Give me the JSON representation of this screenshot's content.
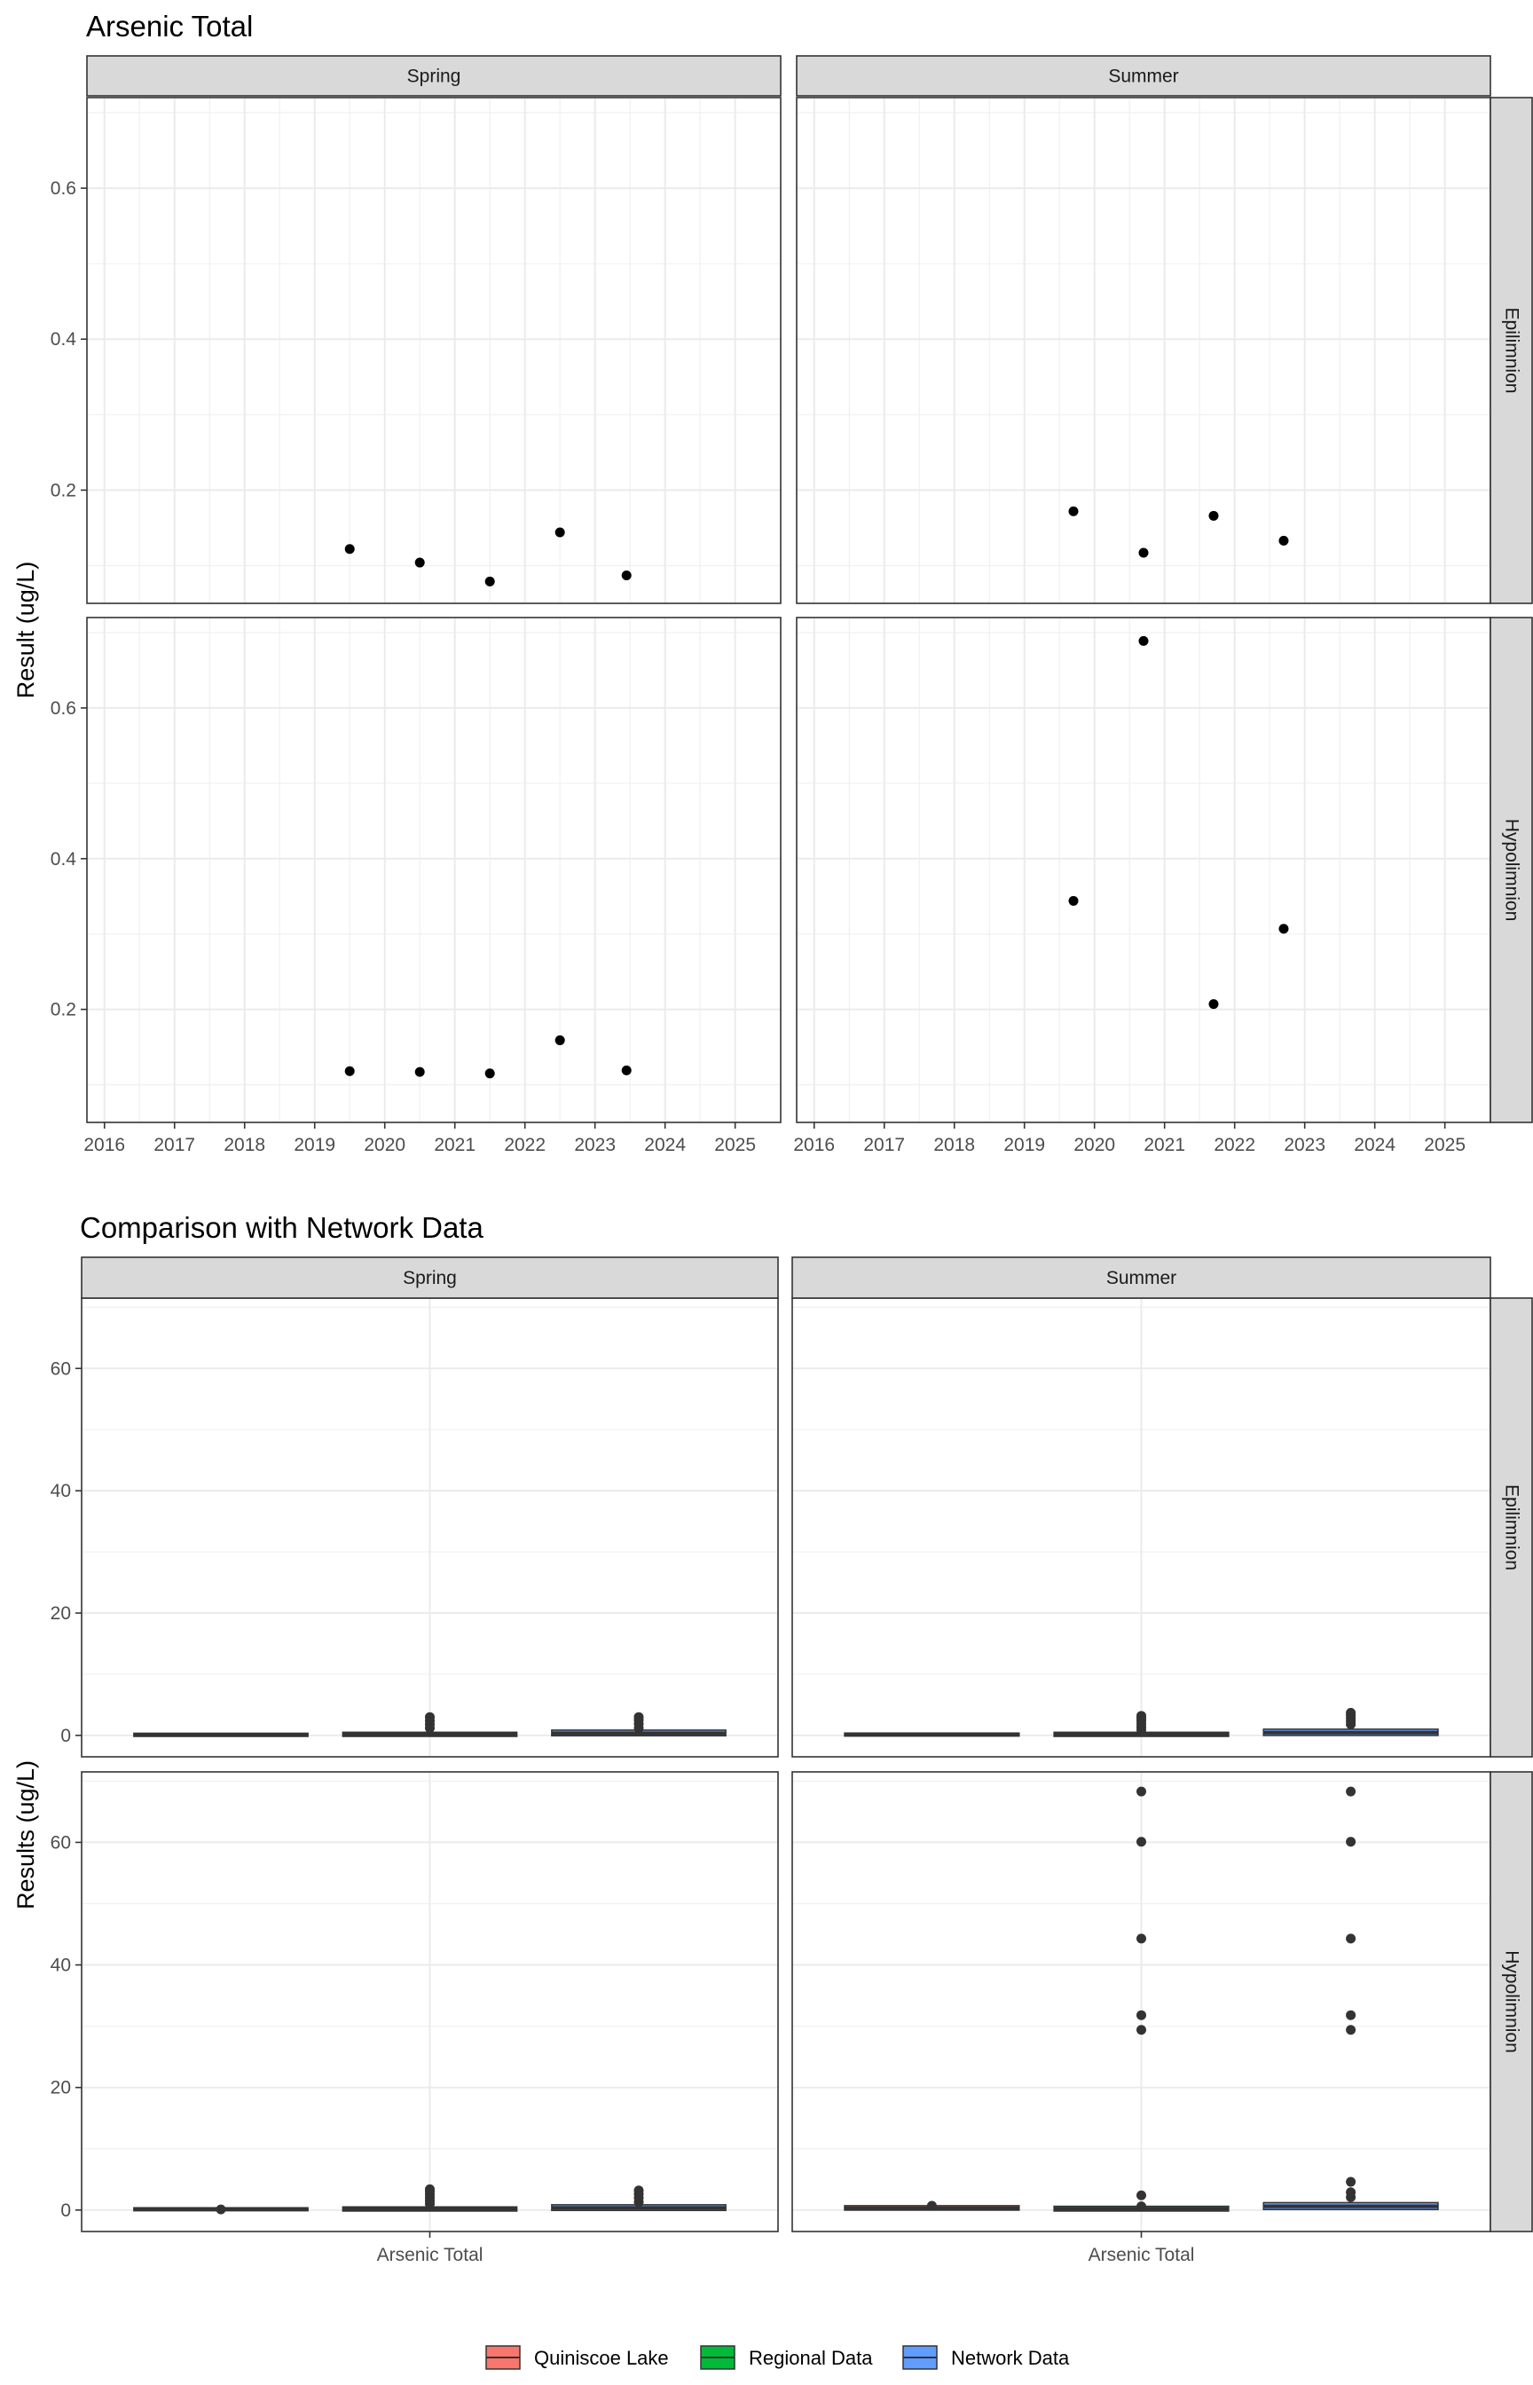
{
  "chart_data": [
    {
      "type": "scatter",
      "title": "Arsenic Total",
      "ylabel": "Result (ug/L)",
      "xlabel": "",
      "x_ticks": [
        "2016",
        "2017",
        "2018",
        "2019",
        "2020",
        "2021",
        "2022",
        "2023",
        "2024",
        "2025"
      ],
      "y_ticks": [
        "0.2",
        "0.4",
        "0.6"
      ],
      "xlim": [
        2015.75,
        2025.65
      ],
      "ylim": [
        0.05,
        0.72
      ],
      "grid": true,
      "col_facets": [
        "Spring",
        "Summer"
      ],
      "row_facets": [
        "Epilimnion",
        "Hypolimnion"
      ],
      "panels": [
        {
          "col": 0,
          "row": 0,
          "x": [
            2019.5,
            2020.5,
            2021.5,
            2022.5,
            2023.45
          ],
          "y": [
            0.122,
            0.104,
            0.079,
            0.144,
            0.087
          ]
        },
        {
          "col": 1,
          "row": 0,
          "x": [
            2019.7,
            2020.7,
            2021.7,
            2022.7
          ],
          "y": [
            0.172,
            0.117,
            0.166,
            0.133
          ]
        },
        {
          "col": 0,
          "row": 1,
          "x": [
            2019.5,
            2020.5,
            2021.5,
            2022.5,
            2023.45
          ],
          "y": [
            0.118,
            0.117,
            0.115,
            0.159,
            0.119
          ]
        },
        {
          "col": 1,
          "row": 1,
          "x": [
            2019.7,
            2020.7,
            2021.7,
            2022.7
          ],
          "y": [
            0.344,
            0.689,
            0.207,
            0.307
          ]
        }
      ]
    },
    {
      "type": "box",
      "title": "Comparison with Network Data",
      "ylabel": "Results (ug/L)",
      "xlabel": "",
      "x_tick": "Arsenic Total",
      "y_ticks": [
        "0",
        "20",
        "40",
        "60"
      ],
      "ylim": [
        -3.5,
        71.5
      ],
      "grid": true,
      "col_facets": [
        "Spring",
        "Summer"
      ],
      "row_facets": [
        "Epilimnion",
        "Hypolimnion"
      ],
      "legend": {
        "position": "bottom",
        "entries": [
          {
            "name": "Quiniscoe Lake",
            "color": "#F8766D"
          },
          {
            "name": "Regional Data",
            "color": "#00BA38"
          },
          {
            "name": "Network Data",
            "color": "#619CFF"
          }
        ]
      },
      "panels": [
        {
          "col": 0,
          "row": 0,
          "groups": [
            {
              "series": "Quiniscoe Lake",
              "q1": 0.05,
              "median": 0.1,
              "q3": 0.14,
              "outliers": []
            },
            {
              "series": "Regional Data",
              "q1": 0.05,
              "median": 0.15,
              "q3": 0.3,
              "outliers": [
                1.2,
                1.8,
                2.4,
                3.0
              ]
            },
            {
              "series": "Network Data",
              "q1": 0.15,
              "median": 0.35,
              "q3": 0.65,
              "outliers": [
                1.2,
                1.9,
                2.5,
                3.0
              ]
            }
          ]
        },
        {
          "col": 1,
          "row": 0,
          "groups": [
            {
              "series": "Quiniscoe Lake",
              "q1": 0.1,
              "median": 0.14,
              "q3": 0.17,
              "outliers": []
            },
            {
              "series": "Regional Data",
              "q1": 0.05,
              "median": 0.15,
              "q3": 0.3,
              "outliers": [
                0.9,
                1.4,
                1.9,
                2.4,
                2.8,
                3.2
              ]
            },
            {
              "series": "Network Data",
              "q1": 0.2,
              "median": 0.45,
              "q3": 0.8,
              "outliers": [
                1.8,
                2.3,
                2.8,
                3.3,
                3.7
              ]
            }
          ]
        },
        {
          "col": 0,
          "row": 1,
          "groups": [
            {
              "series": "Quiniscoe Lake",
              "q1": 0.1,
              "median": 0.12,
              "q3": 0.16,
              "outliers": [
                0.1
              ]
            },
            {
              "series": "Regional Data",
              "q1": 0.05,
              "median": 0.15,
              "q3": 0.3,
              "outliers": [
                1.0,
                1.5,
                2.0,
                2.5,
                3.0,
                3.4
              ]
            },
            {
              "series": "Network Data",
              "q1": 0.15,
              "median": 0.35,
              "q3": 0.65,
              "outliers": [
                1.3,
                2.0,
                2.6,
                3.2
              ]
            }
          ]
        },
        {
          "col": 1,
          "row": 1,
          "groups": [
            {
              "series": "Quiniscoe Lake",
              "q1": 0.2,
              "median": 0.3,
              "q3": 0.5,
              "outliers": [
                0.69
              ]
            },
            {
              "series": "Regional Data",
              "q1": 0.05,
              "median": 0.2,
              "q3": 0.4,
              "outliers": [
                0.6,
                2.4,
                29.4,
                31.8,
                44.3,
                60.1,
                68.3
              ]
            },
            {
              "series": "Network Data",
              "q1": 0.3,
              "median": 0.6,
              "q3": 1.0,
              "outliers": [
                2.1,
                2.9,
                4.6,
                29.4,
                31.8,
                44.3,
                60.1,
                68.3
              ]
            }
          ]
        }
      ]
    }
  ]
}
